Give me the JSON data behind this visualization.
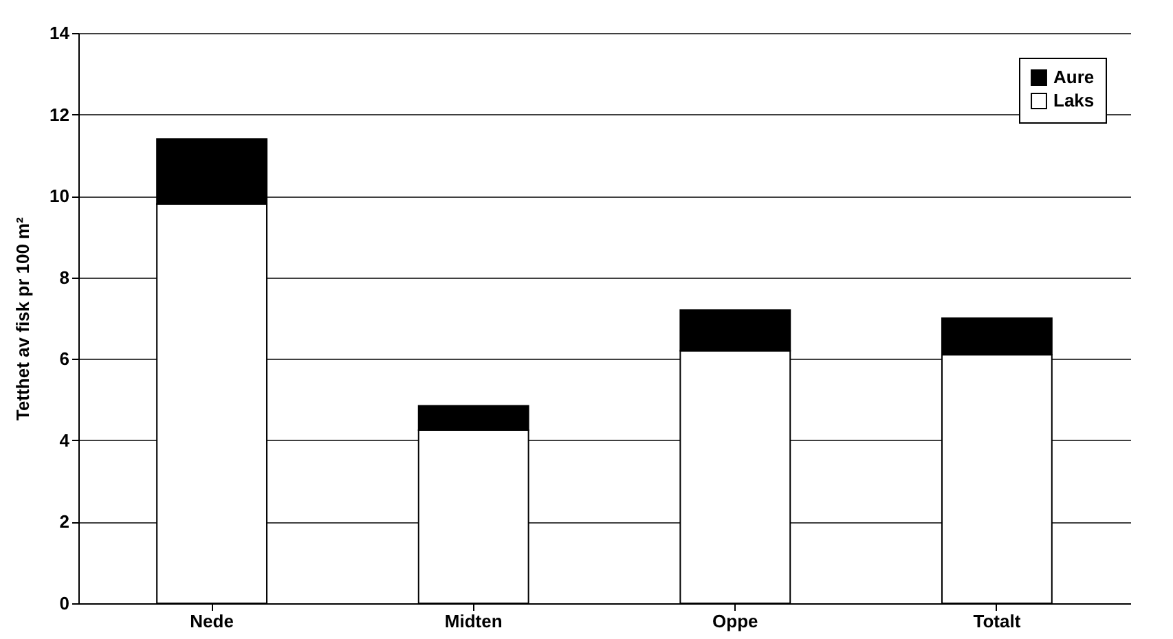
{
  "chart_data": {
    "type": "bar",
    "stacked": true,
    "ylabel": "Tetthet av fisk pr 100 m²",
    "categories": [
      "Nede",
      "Midten",
      "Oppe",
      "Totalt"
    ],
    "series": [
      {
        "name": "Laks",
        "color": "#ffffff",
        "values": [
          9.8,
          4.25,
          6.2,
          6.1
        ]
      },
      {
        "name": "Aure",
        "color": "#000000",
        "values": [
          1.6,
          0.6,
          1.0,
          0.9
        ]
      }
    ],
    "ylim": [
      0,
      14
    ],
    "yticks": [
      0,
      2,
      4,
      6,
      8,
      10,
      12,
      14
    ],
    "grid": "y",
    "legend": "top right"
  }
}
